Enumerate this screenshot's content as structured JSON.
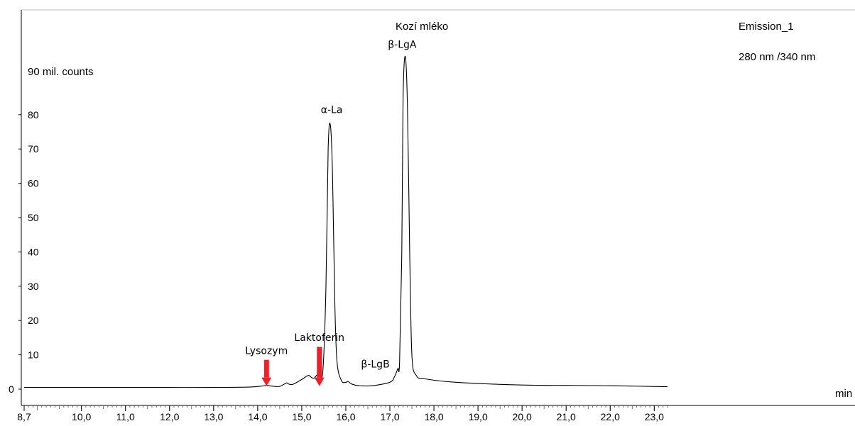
{
  "chart_data": {
    "type": "line",
    "title": "Kozí mléko",
    "channel": "Emission_1",
    "wavelengths": "280 nm /340 nm",
    "ylabel": "90 mil. counts",
    "xunit": "min",
    "xlim": [
      8.7,
      23.3
    ],
    "ylim": [
      0,
      100
    ],
    "x_ticks": [
      "8,7",
      "10,0",
      "11,0",
      "12,0",
      "13,0",
      "14,0",
      "15,0",
      "16,0",
      "17,0",
      "18,0",
      "19,0",
      "20,0",
      "21,0",
      "22,0",
      "23,0"
    ],
    "y_ticks": [
      "0",
      "10",
      "20",
      "30",
      "40",
      "50",
      "60",
      "70",
      "80"
    ],
    "grid": false,
    "series": [
      {
        "color": "#000000",
        "x": [
          8.7,
          10.0,
          11.0,
          12.0,
          13.0,
          13.8,
          14.1,
          14.2,
          14.3,
          14.5,
          14.65,
          14.7,
          14.8,
          15.0,
          15.15,
          15.22,
          15.28,
          15.35,
          15.4,
          15.48,
          15.55,
          15.6,
          15.65,
          15.7,
          15.75,
          15.8,
          15.9,
          16.0,
          16.05,
          16.15,
          16.3,
          16.6,
          17.0,
          17.1,
          17.18,
          17.22,
          17.27,
          17.3,
          17.35,
          17.4,
          17.45,
          17.5,
          17.6,
          17.8,
          18.5,
          20.0,
          21.0,
          22.0,
          23.3
        ],
        "y": [
          0.5,
          0.5,
          0.5,
          0.5,
          0.5,
          0.6,
          0.9,
          1.1,
          0.9,
          0.8,
          1.8,
          1.5,
          1.4,
          2.8,
          4.0,
          3.4,
          3.2,
          4.2,
          4.0,
          5.5,
          30.0,
          70.0,
          77.0,
          62.0,
          25.0,
          8.0,
          2.5,
          2.0,
          2.2,
          1.4,
          1.0,
          1.0,
          2.0,
          3.5,
          6.0,
          8.0,
          40.0,
          85.0,
          97.0,
          82.0,
          40.0,
          10.0,
          4.0,
          3.0,
          2.0,
          1.2,
          1.1,
          1.0,
          0.7
        ]
      }
    ],
    "annotations": [
      {
        "text": "α-La",
        "x": 15.68,
        "y": 80.5
      },
      {
        "text": "β-LgA",
        "x": 17.28,
        "y": 99.5
      },
      {
        "text": "β-LgB",
        "x": 16.67,
        "y": 6.3
      },
      {
        "text": "Lysozym",
        "x": 14.2,
        "y": 10.2,
        "arrow": true
      },
      {
        "text": "Laktoferin",
        "x": 15.4,
        "y": 14.0,
        "arrow": true
      }
    ],
    "arrow_color": "#e8222a"
  }
}
